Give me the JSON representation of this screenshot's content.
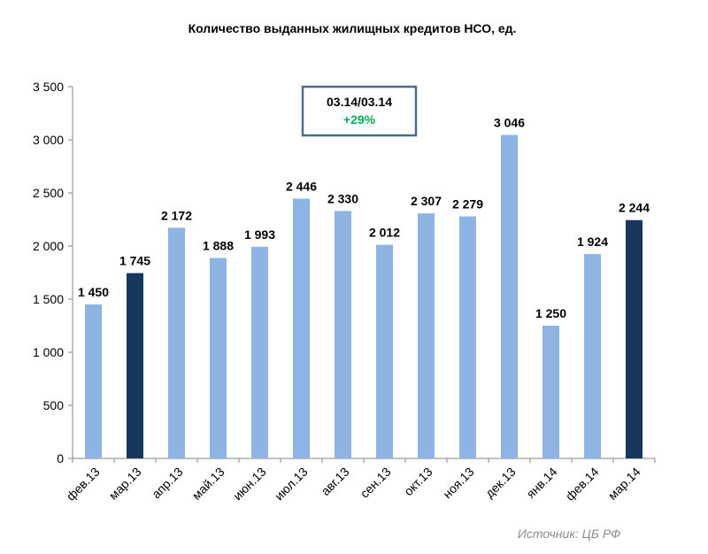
{
  "chart_data": {
    "type": "bar",
    "title": "Количество выданных жилищных кредитов НСО, ед.",
    "categories": [
      "фев.13",
      "мар.13",
      "апр.13",
      "май.13",
      "июн.13",
      "июл.13",
      "авг.13",
      "сен.13",
      "окт.13",
      "ноя.13",
      "дек.13",
      "янв.14",
      "фев.14",
      "мар.14"
    ],
    "values": [
      1450,
      1745,
      2172,
      1888,
      1993,
      2446,
      2330,
      2012,
      2307,
      2279,
      3046,
      1250,
      1924,
      2244
    ],
    "value_labels": [
      "1 450",
      "1 745",
      "2 172",
      "1 888",
      "1 993",
      "2 446",
      "2 330",
      "2 012",
      "2 307",
      "2 279",
      "3 046",
      "1 250",
      "1 924",
      "2 244"
    ],
    "highlighted": [
      false,
      true,
      false,
      false,
      false,
      false,
      false,
      false,
      false,
      false,
      false,
      false,
      false,
      true
    ],
    "yticks": [
      0,
      500,
      1000,
      1500,
      2000,
      2500,
      3000,
      3500
    ],
    "ytick_labels": [
      "0",
      "500",
      "1 000",
      "1 500",
      "2 000",
      "2 500",
      "3 000",
      "3 500"
    ],
    "ylim": [
      0,
      3500
    ],
    "xlabel": "",
    "ylabel": "",
    "grid": false,
    "colors": {
      "bar": "#8eb4e3",
      "highlight": "#17375e",
      "callout_border": "#4f6b8c",
      "callout_value": "#00b050",
      "axis": "#868686"
    }
  },
  "callout": {
    "title": "03.14/03.14",
    "value": "+29%"
  },
  "source": "Источник: ЦБ РФ"
}
